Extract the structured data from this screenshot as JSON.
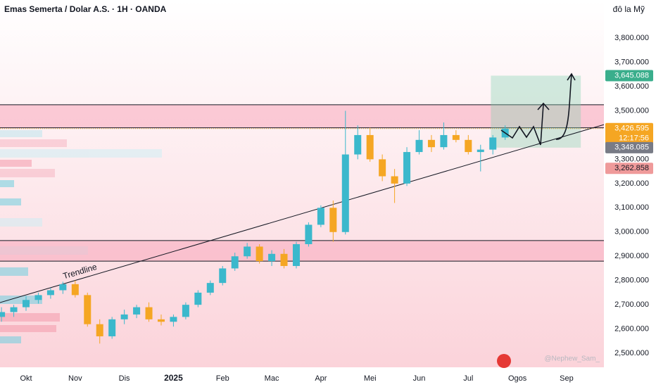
{
  "chart_data": {
    "type": "candlestick",
    "title": "Emas Semerta / Dolar A.S. · 1H · OANDA",
    "currency": "đô la Mỹ",
    "watermark": "@Nephew_Sam_",
    "up_color": "#3bb8cc",
    "down_color": "#f5a623",
    "x": [
      -0.5,
      -0.25,
      0,
      0.25,
      0.5,
      0.75,
      1,
      1.25,
      1.5,
      1.75,
      2,
      2.25,
      2.5,
      2.75,
      3,
      3.25,
      3.5,
      3.75,
      4,
      4.25,
      4.5,
      4.75,
      5,
      5.25,
      5.5,
      5.75,
      6,
      6.25,
      6.5,
      6.75,
      7,
      7.25,
      7.5,
      7.75,
      8,
      8.25,
      8.5,
      8.75,
      9,
      9.25,
      9.5,
      9.75
    ],
    "open": [
      2650,
      2670,
      2690,
      2720,
      2740,
      2760,
      2785,
      2740,
      2620,
      2570,
      2640,
      2660,
      2690,
      2640,
      2630,
      2650,
      2700,
      2750,
      2790,
      2850,
      2900,
      2940,
      2880,
      2910,
      2860,
      2950,
      3030,
      3100,
      3000,
      3320,
      3400,
      3300,
      3230,
      3200,
      3330,
      3380,
      3350,
      3400,
      3380,
      3330,
      3340,
      3390
    ],
    "high": [
      2690,
      2700,
      2735,
      2750,
      2770,
      2795,
      2800,
      2750,
      2640,
      2650,
      2680,
      2700,
      2710,
      2660,
      2660,
      2710,
      2760,
      2800,
      2860,
      2915,
      2955,
      2950,
      2925,
      2930,
      2960,
      3040,
      3110,
      3130,
      3500,
      3440,
      3430,
      3320,
      3260,
      3350,
      3420,
      3400,
      3452,
      3420,
      3400,
      3360,
      3400,
      3440
    ],
    "low": [
      2630,
      2650,
      2675,
      2705,
      2725,
      2745,
      2730,
      2610,
      2540,
      2560,
      2620,
      2645,
      2630,
      2615,
      2610,
      2640,
      2690,
      2740,
      2780,
      2840,
      2890,
      2870,
      2860,
      2850,
      2850,
      2940,
      3020,
      2960,
      2990,
      3300,
      3290,
      3210,
      3120,
      3190,
      3320,
      3330,
      3340,
      3370,
      3320,
      3250,
      3320,
      3380
    ],
    "close": [
      2670,
      2690,
      2720,
      2740,
      2760,
      2785,
      2740,
      2620,
      2570,
      2640,
      2660,
      2690,
      2640,
      2630,
      2650,
      2700,
      2750,
      2790,
      2850,
      2900,
      2940,
      2880,
      2910,
      2860,
      2950,
      3030,
      3100,
      3000,
      3320,
      3400,
      3300,
      3230,
      3200,
      3330,
      3380,
      3350,
      3400,
      3380,
      3330,
      3340,
      3390,
      3426.595
    ],
    "xlim": [
      -0.53,
      11.76
    ],
    "xticks": [
      {
        "value": 0,
        "label": "Okt"
      },
      {
        "value": 1,
        "label": "Nov"
      },
      {
        "value": 2,
        "label": "Dis"
      },
      {
        "value": 3,
        "label": "2025"
      },
      {
        "value": 4,
        "label": "Feb"
      },
      {
        "value": 5,
        "label": "Mac"
      },
      {
        "value": 6,
        "label": "Apr"
      },
      {
        "value": 7,
        "label": "Mei"
      },
      {
        "value": 8,
        "label": "Jun"
      },
      {
        "value": 9,
        "label": "Jul"
      },
      {
        "value": 10,
        "label": "Ogos"
      },
      {
        "value": 11,
        "label": "Sep"
      }
    ],
    "ylim": [
      2448,
      3957
    ],
    "yticks": [
      {
        "value": 2500,
        "label": "2,500.000"
      },
      {
        "value": 2600,
        "label": "2,600.000"
      },
      {
        "value": 2700,
        "label": "2,700.000"
      },
      {
        "value": 2800,
        "label": "2,800.000"
      },
      {
        "value": 2900,
        "label": "2,900.000"
      },
      {
        "value": 3000,
        "label": "3,000.000"
      },
      {
        "value": 3100,
        "label": "3,100.000"
      },
      {
        "value": 3200,
        "label": "3,200.000"
      },
      {
        "value": 3300,
        "label": "3,300.000"
      },
      {
        "value": 3400,
        "label": "3,400.000"
      },
      {
        "value": 3500,
        "label": "3,500.000"
      },
      {
        "value": 3600,
        "label": "3,600.000"
      },
      {
        "value": 3700,
        "label": "3,700.000"
      },
      {
        "value": 3800,
        "label": "3,800.000"
      }
    ],
    "zones": [
      [
        3430,
        3525
      ],
      [
        2880,
        2965
      ]
    ],
    "trendline": {
      "label": "Trendline",
      "x": [
        -0.53,
        11.76
      ],
      "y": [
        2709,
        3443
      ]
    },
    "target_box_x": [
      9.46,
      11.29
    ],
    "price_labels": [
      {
        "value": 3645.088,
        "label": "3,645.088",
        "color": "#3aae8c"
      },
      {
        "value": 3426.595,
        "label": "3,426.595",
        "sub": "12:17:56",
        "color": "#f5a623"
      },
      {
        "value": 3348.085,
        "label": "3,348.085",
        "color": "#787b86"
      },
      {
        "value": 3262.858,
        "label": "3,262.858",
        "color": "#ef9a9a"
      }
    ]
  }
}
